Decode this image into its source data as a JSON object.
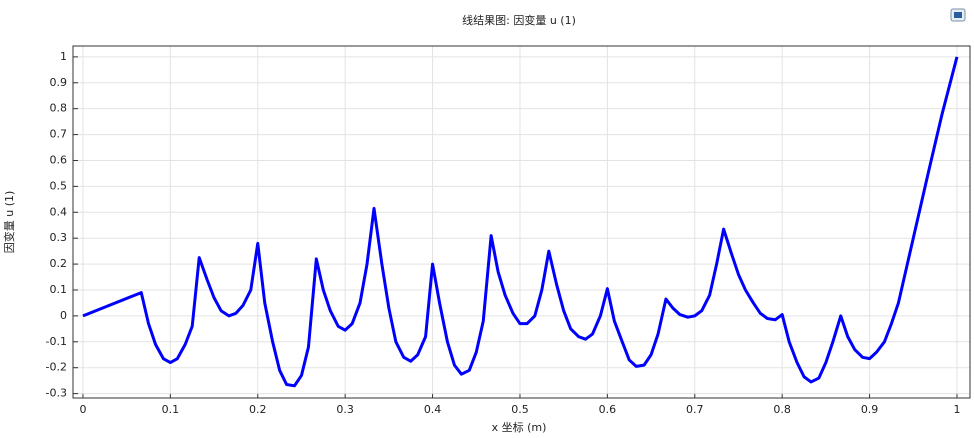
{
  "chart_data": {
    "type": "line",
    "title": "线结果图: 因变量 u (1)",
    "xlabel": "x 坐标 (m)",
    "ylabel": "因变量 u (1)",
    "color": "#0000ff",
    "grid": true,
    "xlim": [
      -0.0114,
      1.0149
    ],
    "ylim": [
      -0.317,
      1.042
    ],
    "xticks": [
      0,
      0.1,
      0.2,
      0.3,
      0.4,
      0.5,
      0.6,
      0.7,
      0.8,
      0.9,
      1
    ],
    "yticks": [
      -0.3,
      -0.2,
      -0.1,
      0,
      0.1,
      0.2,
      0.3,
      0.4,
      0.5,
      0.6,
      0.7,
      0.8,
      0.9,
      1
    ],
    "x": [
      0,
      0.0667,
      0.075,
      0.083,
      0.092,
      0.1,
      0.108,
      0.117,
      0.125,
      0.133,
      0.142,
      0.15,
      0.158,
      0.167,
      0.175,
      0.183,
      0.192,
      0.2,
      0.208,
      0.217,
      0.225,
      0.233,
      0.242,
      0.25,
      0.258,
      0.267,
      0.275,
      0.283,
      0.292,
      0.3,
      0.308,
      0.317,
      0.325,
      0.333,
      0.342,
      0.35,
      0.358,
      0.367,
      0.375,
      0.383,
      0.392,
      0.4,
      0.408,
      0.417,
      0.425,
      0.433,
      0.442,
      0.45,
      0.458,
      0.467,
      0.475,
      0.483,
      0.492,
      0.5,
      0.508,
      0.517,
      0.525,
      0.533,
      0.542,
      0.55,
      0.558,
      0.567,
      0.575,
      0.583,
      0.592,
      0.6,
      0.608,
      0.617,
      0.625,
      0.633,
      0.642,
      0.65,
      0.658,
      0.667,
      0.675,
      0.683,
      0.692,
      0.7,
      0.708,
      0.717,
      0.725,
      0.733,
      0.742,
      0.75,
      0.758,
      0.767,
      0.775,
      0.783,
      0.792,
      0.8,
      0.808,
      0.817,
      0.825,
      0.833,
      0.842,
      0.85,
      0.858,
      0.867,
      0.875,
      0.883,
      0.892,
      0.9,
      0.908,
      0.917,
      0.925,
      0.933,
      0.95,
      0.967,
      0.983,
      1.0
    ],
    "values": [
      0,
      0.09,
      -0.03,
      -0.11,
      -0.165,
      -0.18,
      -0.165,
      -0.11,
      -0.04,
      0.225,
      0.14,
      0.07,
      0.02,
      0.0,
      0.01,
      0.04,
      0.1,
      0.28,
      0.05,
      -0.1,
      -0.21,
      -0.265,
      -0.27,
      -0.23,
      -0.12,
      0.22,
      0.1,
      0.02,
      -0.04,
      -0.055,
      -0.03,
      0.05,
      0.2,
      0.415,
      0.2,
      0.03,
      -0.1,
      -0.16,
      -0.175,
      -0.15,
      -0.08,
      0.2,
      0.05,
      -0.1,
      -0.19,
      -0.225,
      -0.21,
      -0.14,
      -0.02,
      0.31,
      0.17,
      0.08,
      0.01,
      -0.03,
      -0.03,
      0.0,
      0.1,
      0.25,
      0.12,
      0.02,
      -0.05,
      -0.08,
      -0.09,
      -0.07,
      0.0,
      0.105,
      -0.02,
      -0.1,
      -0.17,
      -0.195,
      -0.19,
      -0.15,
      -0.07,
      0.065,
      0.03,
      0.005,
      -0.005,
      0.0,
      0.02,
      0.08,
      0.2,
      0.335,
      0.24,
      0.16,
      0.1,
      0.05,
      0.01,
      -0.01,
      -0.015,
      0.005,
      -0.1,
      -0.18,
      -0.235,
      -0.255,
      -0.24,
      -0.18,
      -0.1,
      0.0,
      -0.08,
      -0.13,
      -0.16,
      -0.165,
      -0.14,
      -0.1,
      -0.03,
      0.05,
      0.3,
      0.55,
      0.78,
      1.0
    ]
  }
}
